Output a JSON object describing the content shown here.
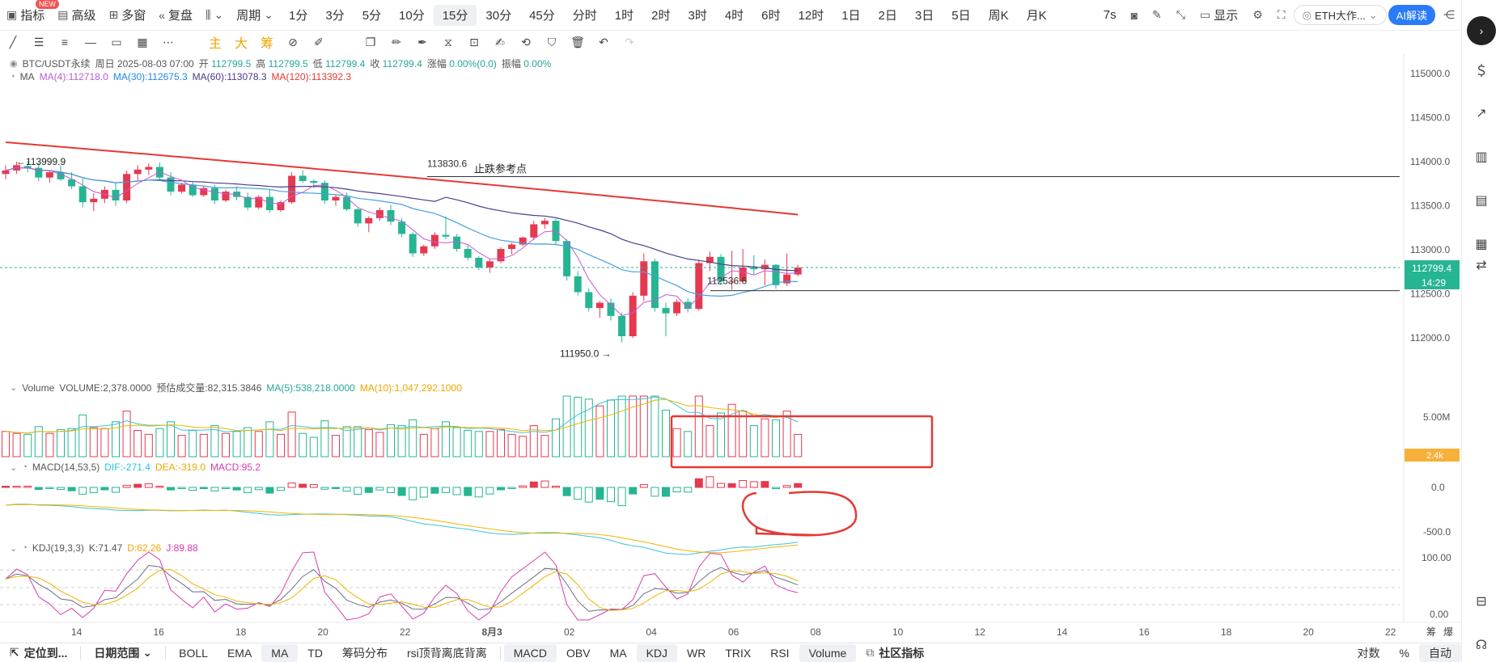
{
  "toolbar": {
    "indicators_label": "指标",
    "new_badge": "NEW",
    "advanced_label": "高级",
    "multi_window_label": "多窗",
    "replay_label": "复盘",
    "period_label": "周期",
    "intervals": [
      "1分",
      "3分",
      "5分",
      "10分",
      "15分",
      "30分",
      "45分",
      "分时",
      "1时",
      "2时",
      "3时",
      "4时",
      "6时",
      "12时",
      "1日",
      "2日",
      "3日",
      "5日",
      "周K",
      "月K"
    ],
    "active_interval": "15分",
    "countdown": "7s",
    "display_label": "显示",
    "symbol_selector": "ETH大作...",
    "ai_button": "AI解读"
  },
  "drawbar": {
    "main_label": "主",
    "large_label": "大",
    "chips_label": "筹"
  },
  "legend": {
    "symbol": "BTC/USDT永续",
    "datetime": "周日 2025-08-03 07:00",
    "open_label": "开",
    "open": "112799.5",
    "high_label": "高",
    "high": "112799.5",
    "low_label": "低",
    "low": "112799.4",
    "close_label": "收",
    "close": "112799.4",
    "change_label": "涨幅",
    "change": "0.00%(0.0)",
    "amplitude_label": "振幅",
    "amplitude": "0.00%",
    "ma_label": "MA",
    "ma4": "MA(4):112718.0",
    "ma30": "MA(30):112675.3",
    "ma60": "MA(60):113078.3",
    "ma120": "MA(120):113392.3",
    "volume_label": "Volume",
    "volume_value": "VOLUME:2,378.0000",
    "est_volume": "预估成交量:82,315.3846",
    "vol_ma5": "MA(5):538,218.0000",
    "vol_ma10": "MA(10):1,047,292.1000",
    "macd_label": "MACD(14,53,5)",
    "macd_dif": "DIF:-271.4",
    "macd_dea": "DEA:-319.0",
    "macd_macd": "MACD:95.2",
    "kdj_label": "KDJ(19,3,3)",
    "kdj_k": "K:71.47",
    "kdj_d": "D:62.26",
    "kdj_j": "J:89.88"
  },
  "colors": {
    "up": "#e53950",
    "down": "#26b593",
    "ma4": "#c35ad6",
    "ma30": "#46a0e0",
    "ma60": "#4b3e8f",
    "ma120": "#e53935",
    "vol_ma5": "#3cc4d6",
    "vol_ma10": "#f0b400",
    "price_badge": "#26b593",
    "vol_badge": "#f7b13a",
    "annotation": "#e53935"
  },
  "chart_data": [
    {
      "type": "candlestick",
      "title": "BTC/USDT永续 15分",
      "ylim": [
        111800,
        115100
      ],
      "y_ticks": [
        115000.0,
        114500.0,
        114000.0,
        113500.0,
        113000.0,
        112500.0,
        112000.0
      ],
      "y_tick_labels": [
        "115000.0",
        "114500.0",
        "114000.0",
        "113500.0",
        "113000.0",
        "112500.0",
        "112000.0"
      ],
      "candles": [
        [
          113860,
          113960,
          113800,
          113900
        ],
        [
          113900,
          114000,
          113860,
          113960
        ],
        [
          113950,
          114010,
          113880,
          113930
        ],
        [
          113930,
          113990,
          113780,
          113820
        ],
        [
          113820,
          113900,
          113760,
          113880
        ],
        [
          113880,
          113960,
          113780,
          113800
        ],
        [
          113800,
          113880,
          113690,
          113720
        ],
        [
          113720,
          113810,
          113480,
          113540
        ],
        [
          113540,
          113640,
          113440,
          113580
        ],
        [
          113580,
          113720,
          113530,
          113680
        ],
        [
          113680,
          113760,
          113500,
          113560
        ],
        [
          113560,
          113900,
          113530,
          113860
        ],
        [
          113860,
          113960,
          113790,
          113910
        ],
        [
          113910,
          113980,
          113850,
          113940
        ],
        [
          113940,
          113990,
          113800,
          113820
        ],
        [
          113820,
          113880,
          113620,
          113660
        ],
        [
          113660,
          113760,
          113640,
          113740
        ],
        [
          113740,
          113770,
          113600,
          113620
        ],
        [
          113620,
          113730,
          113600,
          113700
        ],
        [
          113700,
          113740,
          113520,
          113560
        ],
        [
          113560,
          113680,
          113540,
          113660
        ],
        [
          113660,
          113720,
          113560,
          113600
        ],
        [
          113600,
          113650,
          113450,
          113480
        ],
        [
          113480,
          113620,
          113460,
          113600
        ],
        [
          113600,
          113680,
          113420,
          113450
        ],
        [
          113450,
          113560,
          113430,
          113540
        ],
        [
          113540,
          113880,
          113520,
          113840
        ],
        [
          113840,
          113900,
          113760,
          113780
        ],
        [
          113780,
          113800,
          113700,
          113760
        ],
        [
          113760,
          113790,
          113520,
          113560
        ],
        [
          113560,
          113620,
          113500,
          113600
        ],
        [
          113600,
          113650,
          113440,
          113460
        ],
        [
          113460,
          113470,
          113260,
          113300
        ],
        [
          113300,
          113380,
          113200,
          113360
        ],
        [
          113360,
          113480,
          113330,
          113450
        ],
        [
          113450,
          113510,
          113280,
          113320
        ],
        [
          113320,
          113360,
          113140,
          113180
        ],
        [
          113180,
          113200,
          112920,
          112960
        ],
        [
          112960,
          113060,
          112930,
          113040
        ],
        [
          113040,
          113200,
          113010,
          113170
        ],
        [
          113170,
          113380,
          113120,
          113150
        ],
        [
          113150,
          113180,
          112980,
          113010
        ],
        [
          113010,
          113050,
          112880,
          112910
        ],
        [
          112910,
          112930,
          112770,
          112800
        ],
        [
          112800,
          112900,
          112740,
          112870
        ],
        [
          112870,
          113030,
          112850,
          113010
        ],
        [
          113010,
          113080,
          112950,
          113060
        ],
        [
          113060,
          113150,
          113040,
          113140
        ],
        [
          113140,
          113330,
          113110,
          113290
        ],
        [
          113290,
          113360,
          113240,
          113330
        ],
        [
          113330,
          113350,
          113060,
          113100
        ],
        [
          113100,
          113120,
          112650,
          112700
        ],
        [
          112700,
          112760,
          112480,
          112520
        ],
        [
          112520,
          112560,
          112300,
          112340
        ],
        [
          112340,
          112420,
          112230,
          112400
        ],
        [
          112400,
          112450,
          112200,
          112250
        ],
        [
          112250,
          112290,
          111950,
          112020
        ],
        [
          112020,
          112520,
          112000,
          112480
        ],
        [
          112480,
          112960,
          112420,
          112870
        ],
        [
          112870,
          112900,
          112300,
          112340
        ],
        [
          112340,
          112400,
          112020,
          112280
        ],
        [
          112280,
          112440,
          112250,
          112410
        ],
        [
          112410,
          112450,
          112290,
          112330
        ],
        [
          112330,
          112890,
          112310,
          112850
        ],
        [
          112850,
          112980,
          112760,
          112920
        ],
        [
          112920,
          112950,
          112600,
          112640
        ],
        [
          112640,
          112990,
          112550,
          112640
        ],
        [
          112640,
          113010,
          112640,
          112800
        ],
        [
          112800,
          112940,
          112720,
          112780
        ],
        [
          112780,
          112890,
          112600,
          112830
        ],
        [
          112830,
          112840,
          112560,
          112600
        ],
        [
          112620,
          112960,
          112590,
          112720
        ],
        [
          112720,
          112830,
          112700,
          112799
        ]
      ],
      "ma120_endpoints": [
        [
          114220,
          0
        ],
        [
          113400,
          71
        ]
      ],
      "annotations": [
        {
          "text": "←113999.9",
          "value": 113999.9
        },
        {
          "text": "113830.6",
          "value": 113830.6
        },
        {
          "text": "止跌参考点",
          "value": 113830.6
        },
        {
          "text": "111950.0 →",
          "value": 111950.0
        },
        {
          "text": "112536.6",
          "value": 112536.6
        }
      ],
      "current_price": "112799.4",
      "countdown": "14:29"
    },
    {
      "type": "bar",
      "title": "Volume",
      "y_tick_labels": [
        "5.00M"
      ],
      "volume_badge": "2.4k"
    },
    {
      "type": "bar",
      "title": "MACD(14,53,5)",
      "y_tick_labels": [
        "0.0",
        "-500.0"
      ]
    },
    {
      "type": "line",
      "title": "KDJ(19,3,3)",
      "y_tick_labels": [
        "100.00",
        "0.00"
      ]
    }
  ],
  "xaxis": {
    "labels": [
      "14",
      "16",
      "18",
      "20",
      "22",
      "8月3",
      "02",
      "04",
      "06",
      "08",
      "10",
      "12",
      "14",
      "16",
      "18",
      "20",
      "22"
    ]
  },
  "right_axis_corner": {
    "chips": "筹",
    "burst": "爆"
  },
  "bottombar": {
    "locate": "定位到...",
    "date_range": "日期范围",
    "main_indicators": [
      "BOLL",
      "EMA",
      "MA",
      "TD",
      "筹码分布",
      "rsi顶背离底背离"
    ],
    "main_active": "MA",
    "sub_indicators": [
      "MACD",
      "OBV",
      "MA",
      "KDJ",
      "WR",
      "TRIX",
      "RSI",
      "Volume"
    ],
    "sub_active": [
      "MACD",
      "KDJ",
      "Volume"
    ],
    "community": "社区指标",
    "log_label": "对数",
    "percent_label": "%",
    "auto_label": "自动"
  }
}
